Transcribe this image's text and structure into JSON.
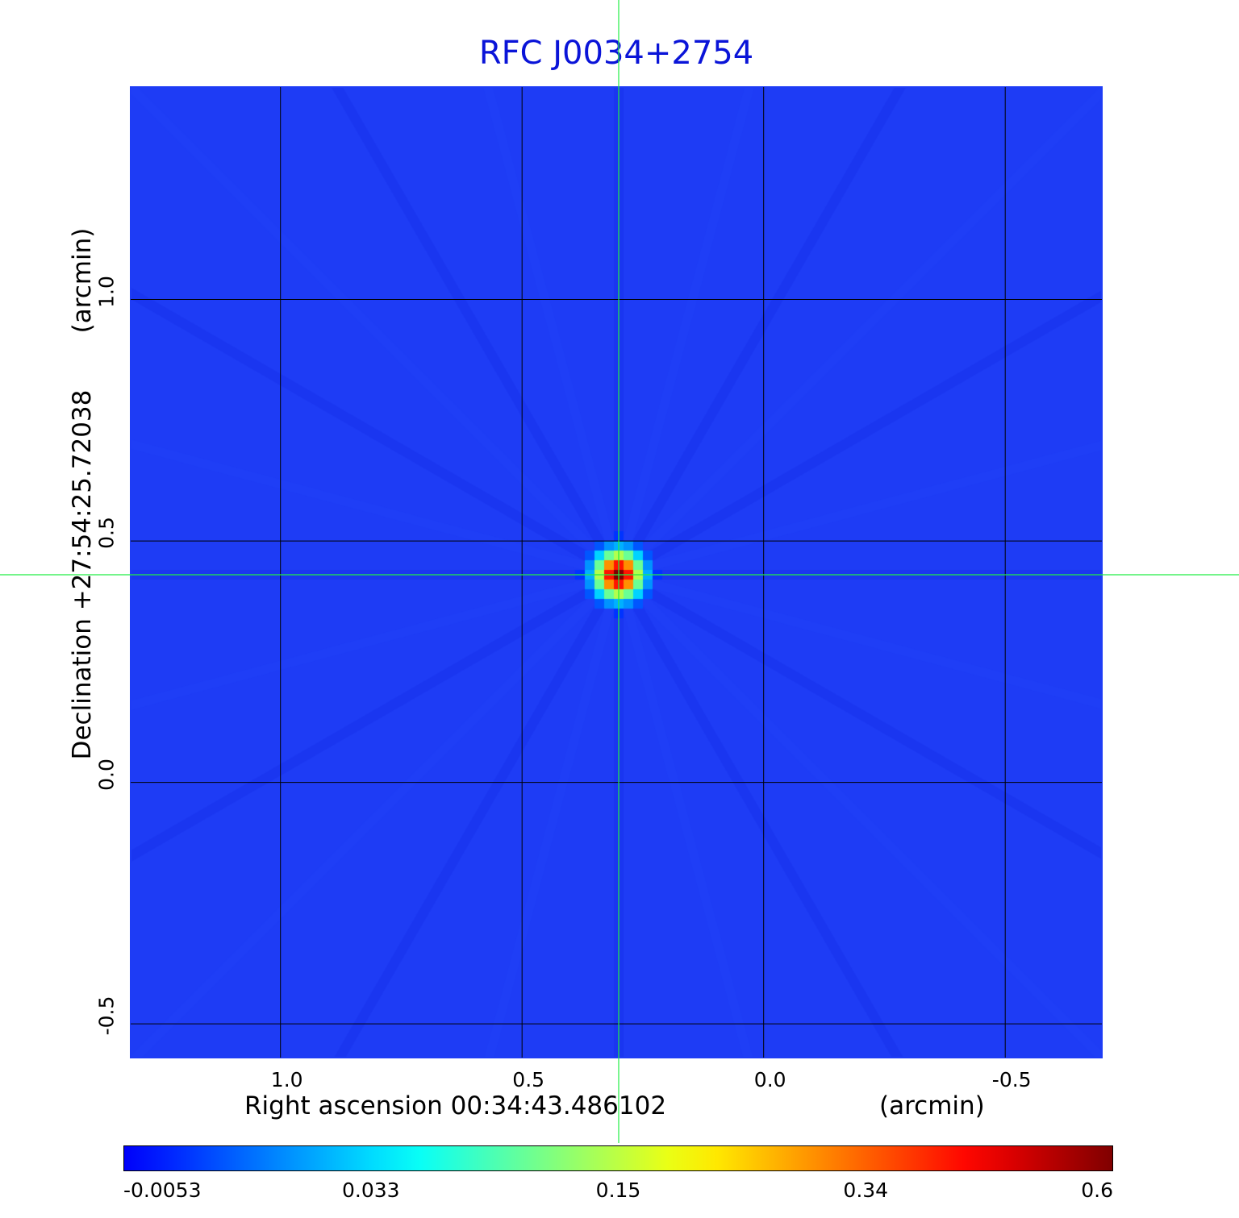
{
  "chart_data": {
    "type": "heatmap",
    "title": "RFC J0034+2754",
    "xlabel": "Right ascension  00:34:43.486102",
    "xunit": "(arcmin)",
    "ylabel": "Declination  +27:54:25.72038",
    "yunit": "(arcmin)",
    "x_ticks": [
      {
        "label": "1.0",
        "value": 1.0
      },
      {
        "label": "0.5",
        "value": 0.5
      },
      {
        "label": "0.0",
        "value": 0.0
      },
      {
        "label": "-0.5",
        "value": -0.5
      }
    ],
    "y_ticks": [
      {
        "label": "1.0",
        "value": 1.0
      },
      {
        "label": "0.5",
        "value": 0.5
      },
      {
        "label": "0.0",
        "value": 0.0
      },
      {
        "label": "-0.5",
        "value": -0.5
      }
    ],
    "xlim": [
      1.31,
      -0.7
    ],
    "ylim": [
      -0.57,
      1.44
    ],
    "grid": true,
    "crosshair": {
      "x": 0.3,
      "y": 0.43
    },
    "source": {
      "x": 0.3,
      "y": 0.43,
      "peak": 0.6
    },
    "colorbar": {
      "ticks": [
        "-0.0053",
        "0.033",
        "0.15",
        "0.34",
        "0.6"
      ],
      "min": -0.0053,
      "max": 0.6,
      "colormap": "jet"
    },
    "colors": {
      "title": "#0a14d8",
      "background_map": "#1e3cf5",
      "crosshair": "#22ee44",
      "grid": "#000000"
    }
  }
}
